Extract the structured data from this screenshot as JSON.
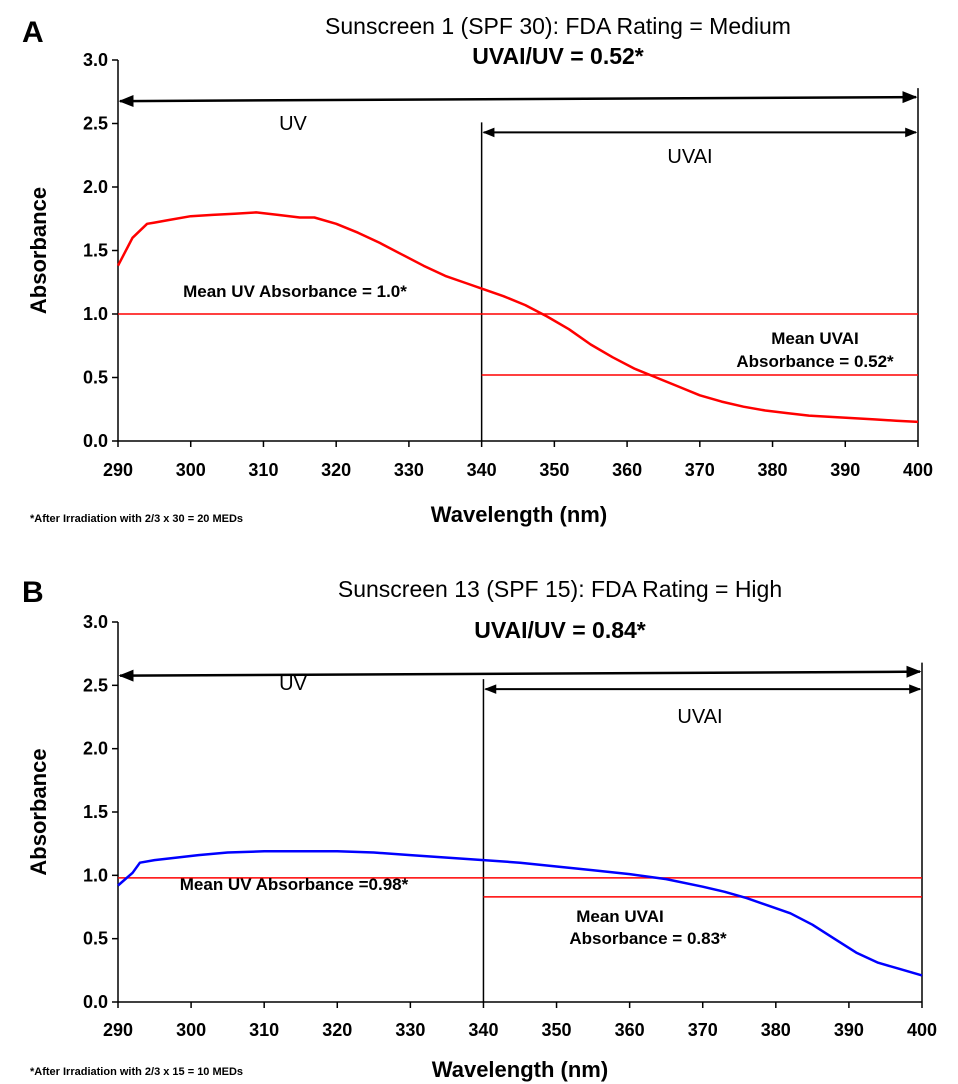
{
  "chart_data": [
    {
      "type": "line",
      "panel_label": "A",
      "title": "Sunscreen 1 (SPF 30): FDA Rating = Medium",
      "subtitle": "UVAI/UV = 0.52*",
      "xlabel": "Wavelength (nm)",
      "ylabel": "Absorbance",
      "xlim": [
        290,
        400
      ],
      "ylim": [
        0,
        3
      ],
      "x_ticks": [
        "290",
        "300",
        "310",
        "320",
        "330",
        "340",
        "350",
        "360",
        "370",
        "380",
        "390",
        "400"
      ],
      "y_ticks": [
        "0.0",
        "0.5",
        "1.0",
        "1.5",
        "2.0",
        "2.5",
        "3.0"
      ],
      "grid": false,
      "curve_color": "#ff0000",
      "series": [
        {
          "x": [
            290,
            292,
            294,
            295,
            297,
            300,
            303,
            306,
            309,
            312,
            315,
            317,
            320,
            323,
            326,
            329,
            332,
            335,
            338,
            340,
            343,
            346,
            349,
            352,
            355,
            358,
            361,
            364,
            367,
            370,
            373,
            376,
            379,
            382,
            385,
            388,
            391,
            394,
            397,
            400
          ],
          "y": [
            1.38,
            1.6,
            1.71,
            1.72,
            1.74,
            1.77,
            1.78,
            1.79,
            1.8,
            1.78,
            1.76,
            1.76,
            1.71,
            1.64,
            1.56,
            1.47,
            1.38,
            1.3,
            1.24,
            1.2,
            1.14,
            1.07,
            0.98,
            0.88,
            0.76,
            0.66,
            0.57,
            0.5,
            0.43,
            0.36,
            0.31,
            0.27,
            0.24,
            0.22,
            0.2,
            0.19,
            0.18,
            0.17,
            0.16,
            0.15
          ]
        }
      ],
      "ranges": {
        "uv": {
          "label": "UV",
          "from": 290,
          "to": 400,
          "y": 2.7
        },
        "uvai": {
          "label": "UVAI",
          "from": 340,
          "to": 400,
          "y": 2.43
        }
      },
      "mean_lines": [
        {
          "y": 1.0,
          "from": 290,
          "to": 400,
          "color": "#ff0000"
        },
        {
          "y": 0.52,
          "from": 340,
          "to": 400,
          "color": "#ff0000"
        }
      ],
      "annotations": {
        "mean_uv": "Mean UV Absorbance = 1.0*",
        "mean_uvai_line1": "Mean UVAI",
        "mean_uvai_line2": "Absorbance = 0.52*"
      },
      "footnote": "*After Irradiation with 2/3 x 30 = 20 MEDs"
    },
    {
      "type": "line",
      "panel_label": "B",
      "title": "Sunscreen 13 (SPF 15): FDA Rating = High",
      "subtitle": "UVAI/UV = 0.84*",
      "xlabel": "Wavelength (nm)",
      "ylabel": "Absorbance",
      "xlim": [
        290,
        400
      ],
      "ylim": [
        0,
        3
      ],
      "x_ticks": [
        "290",
        "300",
        "310",
        "320",
        "330",
        "340",
        "350",
        "360",
        "370",
        "380",
        "390",
        "400"
      ],
      "y_ticks": [
        "0.0",
        "0.5",
        "1.0",
        "1.5",
        "2.0",
        "2.5",
        "3.0"
      ],
      "grid": false,
      "curve_color": "#0000ff",
      "series": [
        {
          "x": [
            290,
            292,
            293,
            295,
            298,
            301,
            305,
            310,
            315,
            320,
            325,
            330,
            335,
            340,
            345,
            350,
            355,
            360,
            365,
            370,
            373,
            376,
            379,
            382,
            385,
            388,
            391,
            394,
            397,
            400
          ],
          "y": [
            0.92,
            1.02,
            1.1,
            1.12,
            1.14,
            1.16,
            1.18,
            1.19,
            1.19,
            1.19,
            1.18,
            1.16,
            1.14,
            1.12,
            1.1,
            1.07,
            1.04,
            1.01,
            0.97,
            0.91,
            0.87,
            0.82,
            0.76,
            0.7,
            0.61,
            0.5,
            0.39,
            0.31,
            0.26,
            0.21
          ]
        }
      ],
      "ranges": {
        "uv": {
          "label": "UV",
          "from": 290,
          "to": 400,
          "y": 2.6
        },
        "uvai": {
          "label": "UVAI",
          "from": 340,
          "to": 400,
          "y": 2.47
        }
      },
      "mean_lines": [
        {
          "y": 0.98,
          "from": 290,
          "to": 400,
          "color": "#ff0000"
        },
        {
          "y": 0.83,
          "from": 340,
          "to": 400,
          "color": "#ff0000"
        }
      ],
      "annotations": {
        "mean_uv": "Mean UV Absorbance =0.98*",
        "mean_uvai_line1": "Mean UVAI",
        "mean_uvai_line2": "Absorbance = 0.83*"
      },
      "footnote": "*After Irradiation with 2/3 x 15 = 10 MEDs"
    }
  ]
}
